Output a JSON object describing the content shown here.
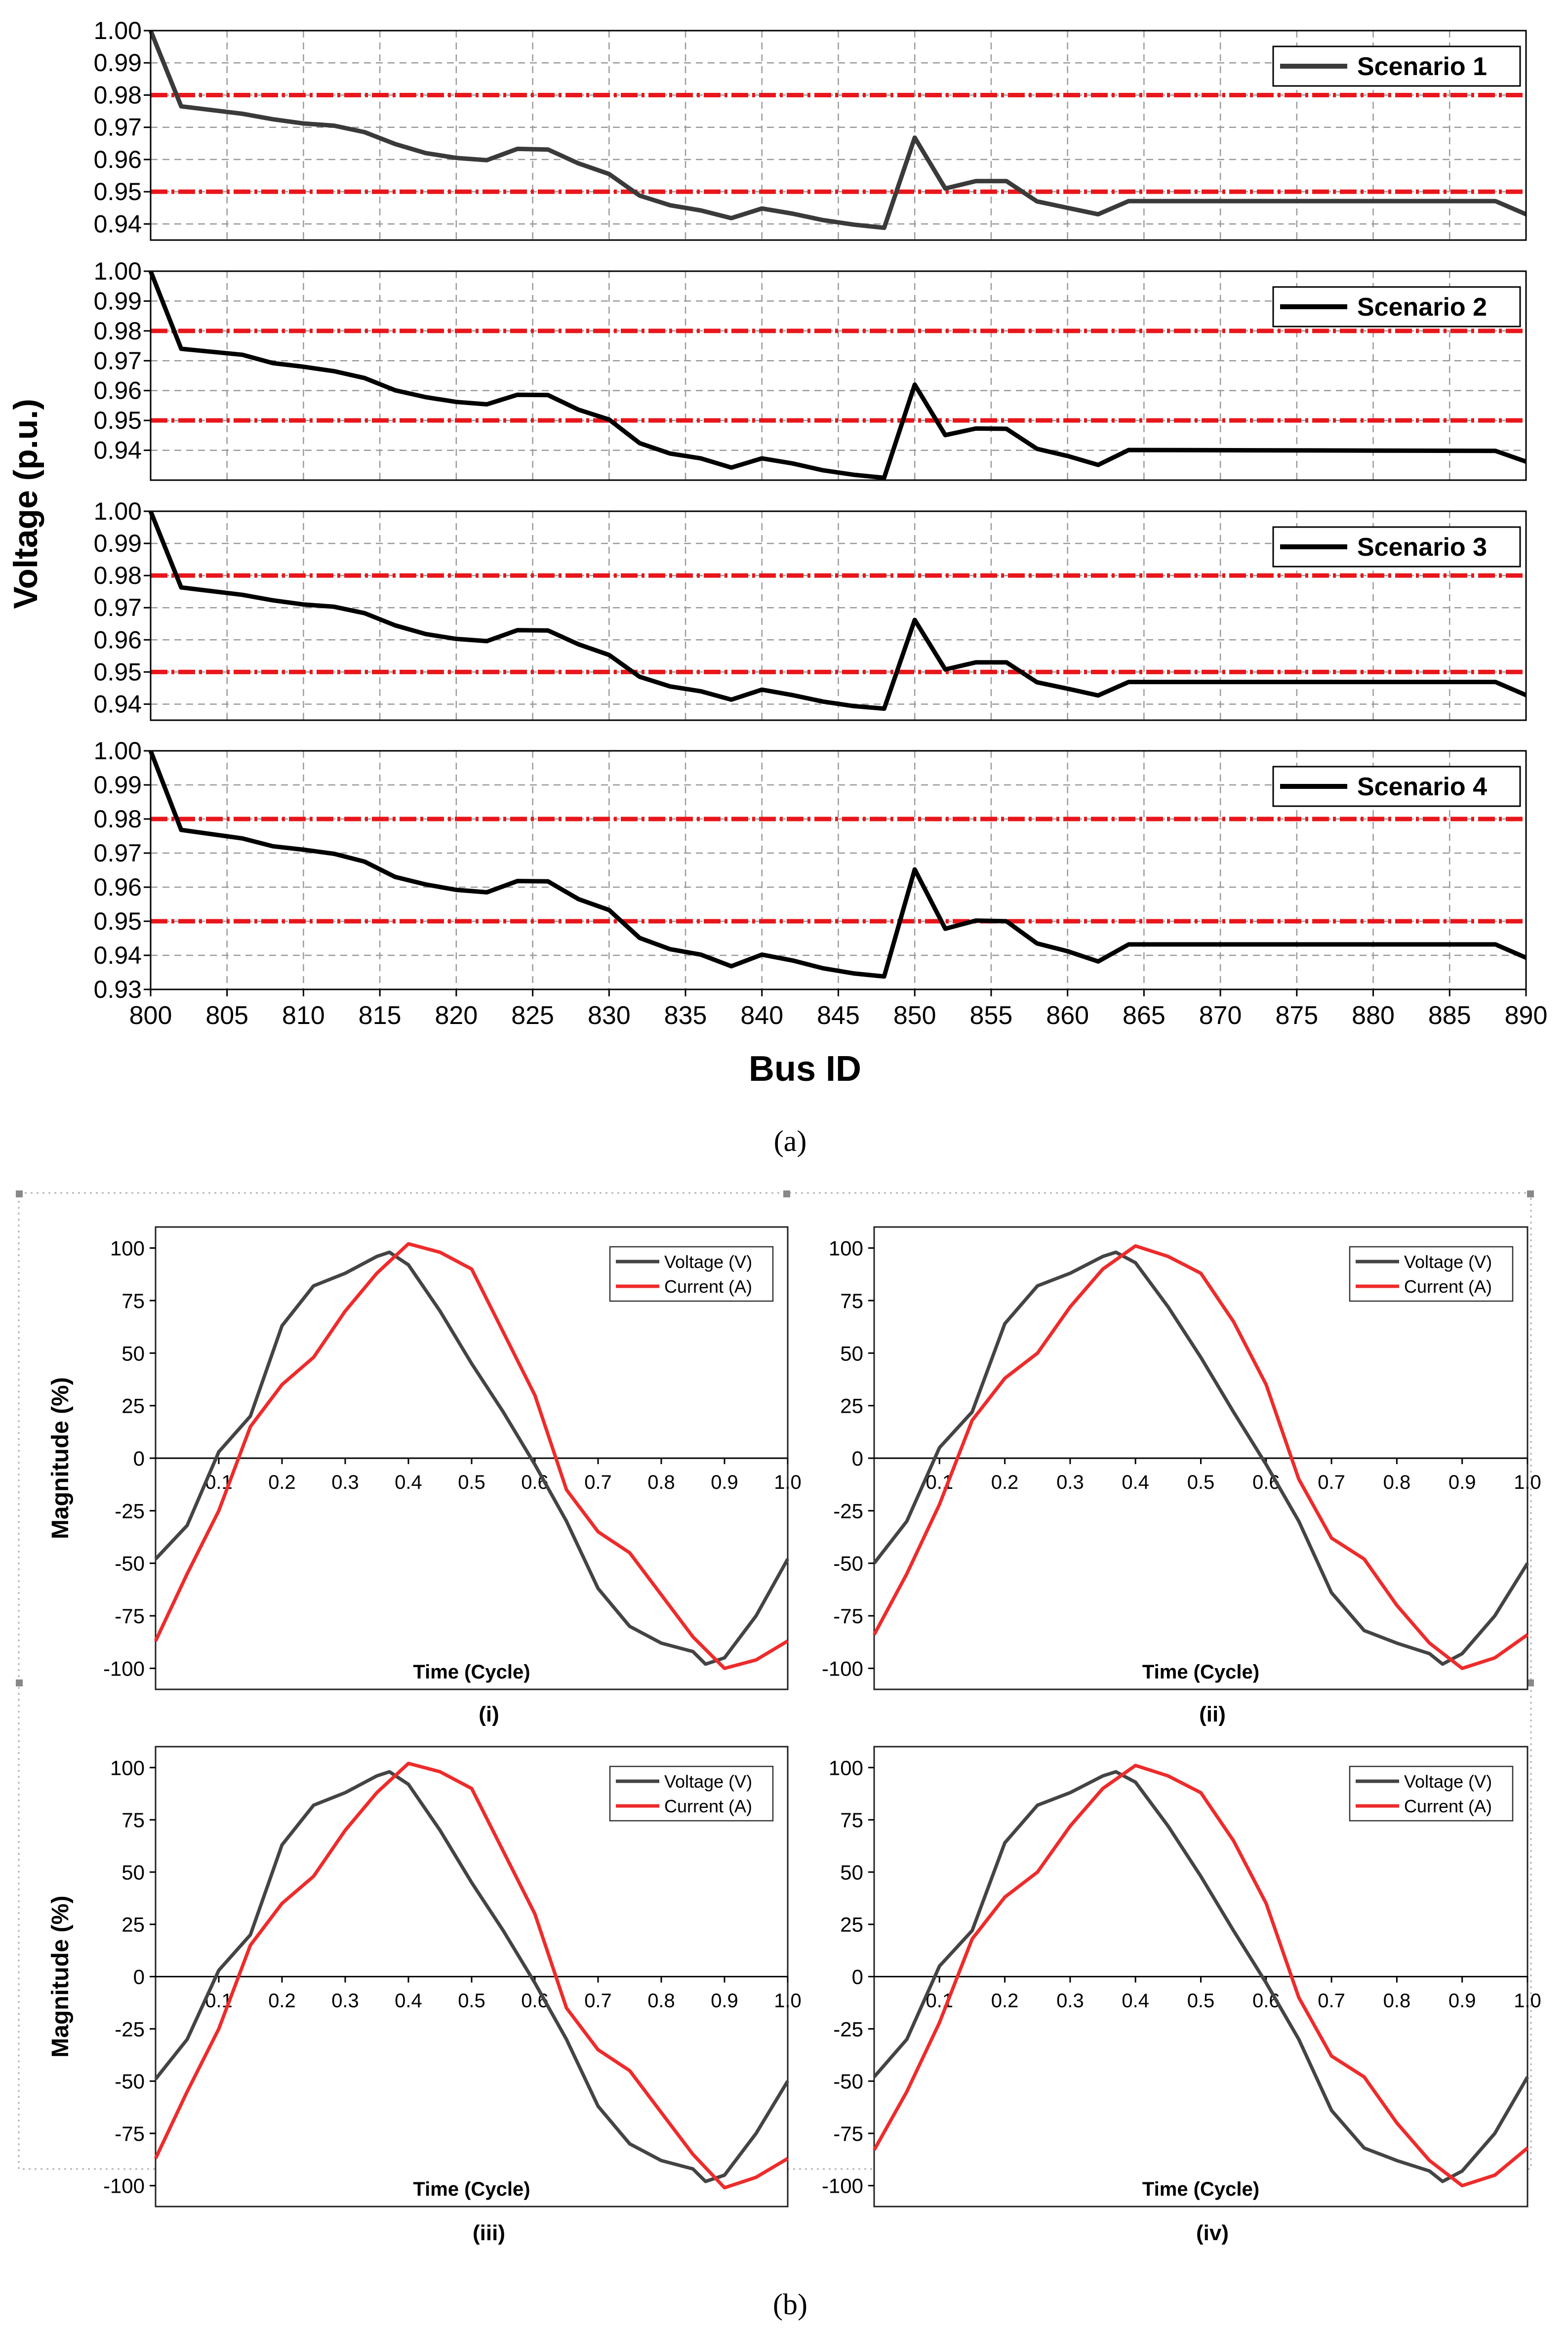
{
  "panel_a": {
    "caption": "(a)",
    "ylabel": "Voltage (p.u.)",
    "xlabel": "Bus ID"
  },
  "panel_b": {
    "caption": "(b)",
    "ylabel": "Magnitude (%)",
    "xlabel": "Time (Cycle)"
  },
  "chart_data": [
    {
      "type": "line",
      "title": "Scenario 1",
      "xlabel": "Bus ID",
      "ylabel": "Voltage (p.u.)",
      "xlim": [
        800,
        890
      ],
      "ylim": [
        0.935,
        1.0
      ],
      "yticks": [
        "1.00",
        "0.99",
        "0.98",
        "0.97",
        "0.96",
        "0.95",
        "0.94"
      ],
      "reference_lines": [
        0.98,
        0.95
      ],
      "line_color": "#3a3a3a",
      "ref_color": "#e8161b",
      "series": [
        {
          "name": "Scenario 1",
          "x": [
            800,
            802,
            806,
            808,
            810,
            812,
            814,
            816,
            818,
            820,
            822,
            824,
            826,
            828,
            830,
            832,
            834,
            836,
            838,
            840,
            842,
            844,
            846,
            848,
            850,
            852,
            854,
            856,
            858,
            860,
            862,
            864,
            888,
            890
          ],
          "values": [
            1.0,
            0.9765,
            0.9742,
            0.9725,
            0.9712,
            0.9705,
            0.9685,
            0.9648,
            0.962,
            0.9605,
            0.9598,
            0.9633,
            0.9631,
            0.9588,
            0.9555,
            0.9488,
            0.9458,
            0.9442,
            0.9418,
            0.9448,
            0.9432,
            0.9412,
            0.9398,
            0.9388,
            0.9668,
            0.951,
            0.9533,
            0.9533,
            0.947,
            0.945,
            0.943,
            0.9471,
            0.9471,
            0.943
          ]
        }
      ]
    },
    {
      "type": "line",
      "title": "Scenario 2",
      "xlabel": "Bus ID",
      "ylabel": "Voltage (p.u.)",
      "xlim": [
        800,
        890
      ],
      "ylim": [
        0.93,
        1.0
      ],
      "yticks": [
        "1.00",
        "0.99",
        "0.98",
        "0.97",
        "0.96",
        "0.95",
        "0.94"
      ],
      "reference_lines": [
        0.98,
        0.95
      ],
      "line_color": "#000000",
      "ref_color": "#e8161b",
      "series": [
        {
          "name": "Scenario 2",
          "x": [
            800,
            802,
            806,
            808,
            810,
            812,
            814,
            816,
            818,
            820,
            822,
            824,
            826,
            828,
            830,
            832,
            834,
            836,
            838,
            840,
            842,
            844,
            846,
            848,
            850,
            852,
            854,
            856,
            858,
            860,
            862,
            864,
            888,
            890
          ],
          "values": [
            1.0,
            0.974,
            0.972,
            0.9692,
            0.968,
            0.9665,
            0.9642,
            0.9601,
            0.9578,
            0.9562,
            0.9554,
            0.9586,
            0.9585,
            0.9536,
            0.9503,
            0.9424,
            0.9389,
            0.9373,
            0.9342,
            0.9373,
            0.9356,
            0.9333,
            0.9318,
            0.9308,
            0.962,
            0.9451,
            0.9473,
            0.9472,
            0.9405,
            0.9381,
            0.9351,
            0.9401,
            0.9398,
            0.9362
          ]
        }
      ]
    },
    {
      "type": "line",
      "title": "Scenario 3",
      "xlabel": "Bus ID",
      "ylabel": "Voltage (p.u.)",
      "xlim": [
        800,
        890
      ],
      "ylim": [
        0.935,
        1.0
      ],
      "yticks": [
        "1.00",
        "0.99",
        "0.98",
        "0.97",
        "0.96",
        "0.95",
        "0.94"
      ],
      "reference_lines": [
        0.98,
        0.95
      ],
      "line_color": "#000000",
      "ref_color": "#e8161b",
      "series": [
        {
          "name": "Scenario 3",
          "x": [
            800,
            802,
            806,
            808,
            810,
            812,
            814,
            816,
            818,
            820,
            822,
            824,
            826,
            828,
            830,
            832,
            834,
            836,
            838,
            840,
            842,
            844,
            846,
            848,
            850,
            852,
            854,
            856,
            858,
            860,
            862,
            864,
            888,
            890
          ],
          "values": [
            1.0,
            0.9763,
            0.974,
            0.9723,
            0.971,
            0.9703,
            0.9683,
            0.9645,
            0.9618,
            0.9603,
            0.9596,
            0.963,
            0.9629,
            0.9586,
            0.9553,
            0.9485,
            0.9455,
            0.944,
            0.9414,
            0.9445,
            0.9428,
            0.9408,
            0.9394,
            0.9386,
            0.9662,
            0.9508,
            0.953,
            0.953,
            0.9468,
            0.9448,
            0.9427,
            0.9469,
            0.9469,
            0.9428
          ]
        }
      ]
    },
    {
      "type": "line",
      "title": "Scenario 4",
      "xlabel": "Bus ID",
      "ylabel": "Voltage (p.u.)",
      "xlim": [
        800,
        890
      ],
      "ylim": [
        0.93,
        1.0
      ],
      "xticks": [
        "800",
        "805",
        "810",
        "815",
        "820",
        "825",
        "830",
        "835",
        "840",
        "845",
        "850",
        "855",
        "860",
        "865",
        "870",
        "875",
        "880",
        "885",
        "890"
      ],
      "yticks": [
        "1.00",
        "0.99",
        "0.98",
        "0.97",
        "0.96",
        "0.95",
        "0.94",
        "0.93"
      ],
      "reference_lines": [
        0.98,
        0.95
      ],
      "line_color": "#000000",
      "ref_color": "#e8161b",
      "series": [
        {
          "name": "Scenario 4",
          "x": [
            800,
            802,
            806,
            808,
            810,
            812,
            814,
            816,
            818,
            820,
            822,
            824,
            826,
            828,
            830,
            832,
            834,
            836,
            838,
            840,
            842,
            844,
            846,
            848,
            850,
            852,
            854,
            856,
            858,
            860,
            862,
            864,
            888,
            890
          ],
          "values": [
            1.0,
            0.9768,
            0.9743,
            0.972,
            0.971,
            0.9698,
            0.9675,
            0.963,
            0.9608,
            0.9592,
            0.9585,
            0.9618,
            0.9617,
            0.9565,
            0.9533,
            0.9451,
            0.9418,
            0.9402,
            0.9368,
            0.9402,
            0.9385,
            0.9362,
            0.9347,
            0.9338,
            0.9652,
            0.9478,
            0.9502,
            0.95,
            0.9435,
            0.9412,
            0.9382,
            0.9432,
            0.9432,
            0.9393
          ]
        }
      ]
    },
    {
      "type": "line",
      "title": "(i)",
      "xlabel": "Time (Cycle)",
      "ylabel": "Magnitude (%)",
      "xlim": [
        0,
        1.0
      ],
      "ylim": [
        -110,
        110
      ],
      "xticks": [
        "0.1",
        "0.2",
        "0.3",
        "0.4",
        "0.5",
        "0.6",
        "0.7",
        "0.8",
        "0.9",
        "1.0"
      ],
      "yticks": [
        "100",
        "75",
        "50",
        "25",
        "0",
        "-25",
        "-50",
        "-75",
        "-100"
      ],
      "series": [
        {
          "name": "Voltage (V)",
          "color": "#444444",
          "x": [
            0,
            0.05,
            0.1,
            0.15,
            0.2,
            0.25,
            0.3,
            0.35,
            0.37,
            0.4,
            0.45,
            0.5,
            0.55,
            0.6,
            0.65,
            0.7,
            0.75,
            0.8,
            0.85,
            0.87,
            0.9,
            0.95,
            1.0
          ],
          "values": [
            -48,
            -32,
            3,
            20,
            63,
            82,
            88,
            96,
            98,
            92,
            70,
            45,
            22,
            -3,
            -30,
            -62,
            -80,
            -88,
            -92,
            -98,
            -95,
            -75,
            -48
          ]
        },
        {
          "name": "Current (A)",
          "color": "#ee2b2b",
          "x": [
            0,
            0.05,
            0.1,
            0.15,
            0.2,
            0.25,
            0.3,
            0.35,
            0.4,
            0.45,
            0.5,
            0.55,
            0.6,
            0.65,
            0.7,
            0.75,
            0.8,
            0.85,
            0.9,
            0.95,
            1.0
          ],
          "values": [
            -87,
            -55,
            -25,
            15,
            35,
            48,
            70,
            88,
            102,
            98,
            90,
            60,
            30,
            -15,
            -35,
            -45,
            -65,
            -85,
            -100,
            -96,
            -87
          ]
        }
      ]
    },
    {
      "type": "line",
      "title": "(ii)",
      "xlabel": "Time (Cycle)",
      "ylabel": "Magnitude (%)",
      "xlim": [
        0,
        1.0
      ],
      "ylim": [
        -110,
        110
      ],
      "xticks": [
        "0.1",
        "0.2",
        "0.3",
        "0.4",
        "0.5",
        "0.6",
        "0.7",
        "0.8",
        "0.9",
        "1.0"
      ],
      "yticks": [
        "100",
        "75",
        "50",
        "25",
        "0",
        "-25",
        "-50",
        "-75",
        "-100"
      ],
      "series": [
        {
          "name": "Voltage (V)",
          "color": "#444444",
          "x": [
            0,
            0.05,
            0.1,
            0.15,
            0.2,
            0.25,
            0.3,
            0.35,
            0.37,
            0.4,
            0.45,
            0.5,
            0.55,
            0.6,
            0.65,
            0.7,
            0.75,
            0.8,
            0.85,
            0.87,
            0.9,
            0.95,
            1.0
          ],
          "values": [
            -50,
            -30,
            5,
            22,
            64,
            82,
            88,
            96,
            98,
            93,
            72,
            48,
            22,
            -3,
            -30,
            -64,
            -82,
            -88,
            -93,
            -98,
            -93,
            -75,
            -50
          ]
        },
        {
          "name": "Current (A)",
          "color": "#ee2b2b",
          "x": [
            0,
            0.05,
            0.1,
            0.15,
            0.2,
            0.25,
            0.3,
            0.35,
            0.4,
            0.45,
            0.5,
            0.55,
            0.6,
            0.65,
            0.7,
            0.75,
            0.8,
            0.85,
            0.9,
            0.95,
            1.0
          ],
          "values": [
            -84,
            -55,
            -22,
            18,
            38,
            50,
            72,
            90,
            101,
            96,
            88,
            65,
            35,
            -10,
            -38,
            -48,
            -70,
            -88,
            -100,
            -95,
            -84
          ]
        }
      ]
    },
    {
      "type": "line",
      "title": "(iii)",
      "xlabel": "Time (Cycle)",
      "ylabel": "Magnitude (%)",
      "xlim": [
        0,
        1.0
      ],
      "ylim": [
        -110,
        110
      ],
      "xticks": [
        "0.1",
        "0.2",
        "0.3",
        "0.4",
        "0.5",
        "0.6",
        "0.7",
        "0.8",
        "0.9",
        "1.0"
      ],
      "yticks": [
        "100",
        "75",
        "50",
        "25",
        "0",
        "-25",
        "-50",
        "-75",
        "-100"
      ],
      "series": [
        {
          "name": "Voltage (V)",
          "color": "#444444",
          "x": [
            0,
            0.05,
            0.1,
            0.15,
            0.2,
            0.25,
            0.3,
            0.35,
            0.37,
            0.4,
            0.45,
            0.5,
            0.55,
            0.6,
            0.65,
            0.7,
            0.75,
            0.8,
            0.85,
            0.87,
            0.9,
            0.95,
            1.0
          ],
          "values": [
            -49,
            -30,
            3,
            20,
            63,
            82,
            88,
            96,
            98,
            92,
            70,
            45,
            22,
            -3,
            -30,
            -62,
            -80,
            -88,
            -92,
            -98,
            -95,
            -75,
            -50
          ]
        },
        {
          "name": "Current (A)",
          "color": "#ee2b2b",
          "x": [
            0,
            0.05,
            0.1,
            0.15,
            0.2,
            0.25,
            0.3,
            0.35,
            0.4,
            0.45,
            0.5,
            0.55,
            0.6,
            0.65,
            0.7,
            0.75,
            0.8,
            0.85,
            0.9,
            0.95,
            1.0
          ],
          "values": [
            -87,
            -55,
            -25,
            15,
            35,
            48,
            70,
            88,
            102,
            98,
            90,
            60,
            30,
            -15,
            -35,
            -45,
            -65,
            -85,
            -101,
            -96,
            -87
          ]
        }
      ]
    },
    {
      "type": "line",
      "title": "(iv)",
      "xlabel": "Time (Cycle)",
      "ylabel": "Magnitude (%)",
      "xlim": [
        0,
        1.0
      ],
      "ylim": [
        -110,
        110
      ],
      "xticks": [
        "0.1",
        "0.2",
        "0.3",
        "0.4",
        "0.5",
        "0.6",
        "0.7",
        "0.8",
        "0.9",
        "1.0"
      ],
      "yticks": [
        "100",
        "75",
        "50",
        "25",
        "0",
        "-25",
        "-50",
        "-75",
        "-100"
      ],
      "series": [
        {
          "name": "Voltage (V)",
          "color": "#444444",
          "x": [
            0,
            0.05,
            0.1,
            0.15,
            0.2,
            0.25,
            0.3,
            0.35,
            0.37,
            0.4,
            0.45,
            0.5,
            0.55,
            0.6,
            0.65,
            0.7,
            0.75,
            0.8,
            0.85,
            0.87,
            0.9,
            0.95,
            1.0
          ],
          "values": [
            -48,
            -30,
            5,
            22,
            64,
            82,
            88,
            96,
            98,
            93,
            72,
            48,
            22,
            -3,
            -30,
            -64,
            -82,
            -88,
            -93,
            -98,
            -93,
            -75,
            -48
          ]
        },
        {
          "name": "Current (A)",
          "color": "#ee2b2b",
          "x": [
            0,
            0.05,
            0.1,
            0.15,
            0.2,
            0.25,
            0.3,
            0.35,
            0.4,
            0.45,
            0.5,
            0.55,
            0.6,
            0.65,
            0.7,
            0.75,
            0.8,
            0.85,
            0.9,
            0.95,
            1.0
          ],
          "values": [
            -83,
            -55,
            -22,
            18,
            38,
            50,
            72,
            90,
            101,
            96,
            88,
            65,
            35,
            -10,
            -38,
            -48,
            -70,
            -88,
            -100,
            -95,
            -82
          ]
        }
      ]
    }
  ]
}
